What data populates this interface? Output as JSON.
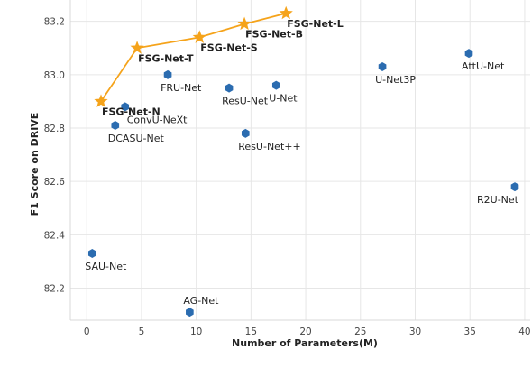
{
  "chart_data": {
    "type": "scatter",
    "xlabel": "Number of Parameters(M)",
    "ylabel": "F1 Score on DRIVE",
    "xlim": [
      -1.5,
      40.5
    ],
    "ylim": [
      82.08,
      83.28
    ],
    "xticks": [
      0,
      5,
      10,
      15,
      20,
      25,
      30,
      35,
      40
    ],
    "yticks": [
      82.2,
      82.4,
      82.6,
      82.8,
      83.0,
      83.2
    ],
    "xtick_labels": [
      "0",
      "5",
      "10",
      "15",
      "20",
      "25",
      "30",
      "35",
      "40"
    ],
    "ytick_labels": [
      "82.2",
      "82.4",
      "82.6",
      "82.8",
      "83.0",
      "83.2"
    ],
    "grid": true,
    "colors": {
      "baseline": "#2b6cb0",
      "fsgnet": "#f5a31a"
    },
    "series": [
      {
        "style": "hexagon-markers",
        "points": [
          {
            "label": "SAU-Net",
            "x": 0.5,
            "y": 82.33,
            "label_pos": "below"
          },
          {
            "label": "DCASU-Net",
            "x": 2.6,
            "y": 82.81,
            "label_pos": "below"
          },
          {
            "label": "ConvU-NeXt",
            "x": 3.5,
            "y": 82.88,
            "label_pos": "below-right"
          },
          {
            "label": "FRU-Net",
            "x": 7.4,
            "y": 83.0,
            "label_pos": "below"
          },
          {
            "label": "ResU-Net",
            "x": 13.0,
            "y": 82.95,
            "label_pos": "below"
          },
          {
            "label": "U-Net",
            "x": 17.3,
            "y": 82.96,
            "label_pos": "below"
          },
          {
            "label": "ResU-Net++",
            "x": 14.5,
            "y": 82.78,
            "label_pos": "below"
          },
          {
            "label": "AG-Net",
            "x": 9.4,
            "y": 82.11,
            "label_pos": "above"
          },
          {
            "label": "U-Net3P",
            "x": 27.0,
            "y": 83.03,
            "label_pos": "below"
          },
          {
            "label": "AttU-Net",
            "x": 34.9,
            "y": 83.08,
            "label_pos": "below"
          },
          {
            "label": "R2U-Net",
            "x": 39.1,
            "y": 82.58,
            "label_pos": "below-left"
          }
        ]
      },
      {
        "style": "star-line",
        "points": [
          {
            "label": "FSG-Net-N",
            "x": 1.3,
            "y": 82.9,
            "label_pos": "below"
          },
          {
            "label": "FSG-Net-T",
            "x": 4.6,
            "y": 83.1,
            "label_pos": "below"
          },
          {
            "label": "FSG-Net-S",
            "x": 10.3,
            "y": 83.14,
            "label_pos": "below"
          },
          {
            "label": "FSG-Net-B",
            "x": 14.4,
            "y": 83.19,
            "label_pos": "below"
          },
          {
            "label": "FSG-Net-L",
            "x": 18.2,
            "y": 83.23,
            "label_pos": "below"
          }
        ]
      }
    ]
  }
}
